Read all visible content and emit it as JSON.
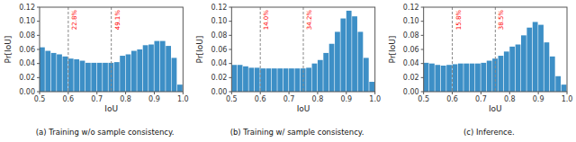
{
  "chart_data": [
    {
      "type": "histogram",
      "title": "(a) Training w/o sample consistency.",
      "x_label": "IoU",
      "y_label": "Pr[IoU]",
      "color": "#3d8fc6",
      "bins": [
        0.5,
        0.52,
        0.54,
        0.56,
        0.58,
        0.6,
        0.62,
        0.64,
        0.66,
        0.68,
        0.7,
        0.72,
        0.74,
        0.76,
        0.78,
        0.8,
        0.82,
        0.84,
        0.86,
        0.88,
        0.9,
        0.92,
        0.94,
        0.96,
        0.98,
        1.0
      ],
      "values": [
        0.063,
        0.058,
        0.055,
        0.053,
        0.05,
        0.047,
        0.046,
        0.044,
        0.041,
        0.041,
        0.041,
        0.041,
        0.041,
        0.042,
        0.051,
        0.053,
        0.058,
        0.06,
        0.066,
        0.067,
        0.072,
        0.072,
        0.065,
        0.048,
        0.01
      ],
      "annotations": [
        {
          "x": 0.6,
          "text": "22.8%",
          "color": "red"
        },
        {
          "x": 0.75,
          "text": "49.1%",
          "color": "red"
        }
      ],
      "xlim": [
        0.5,
        1.0
      ],
      "xticks": [
        0.5,
        0.6,
        0.7,
        0.8,
        0.9,
        {
          "value": 1.0,
          "label": "1.0"
        }
      ],
      "ylim": [
        0,
        0.12
      ],
      "yticks": [
        {
          "value": 0,
          "label": "0.00"
        },
        0.02,
        0.04,
        0.06,
        0.08,
        {
          "value": 0.1,
          "label": "0.10"
        },
        0.12
      ],
      "grid": false
    },
    {
      "type": "histogram",
      "title": "(b) Training w/ sample consistency.",
      "x_label": "IoU",
      "y_label": "Pr[IoU]",
      "color": "#3d8fc6",
      "bins": [
        0.5,
        0.52,
        0.54,
        0.56,
        0.58,
        0.6,
        0.62,
        0.64,
        0.66,
        0.68,
        0.7,
        0.72,
        0.74,
        0.76,
        0.78,
        0.8,
        0.82,
        0.84,
        0.86,
        0.88,
        0.9,
        0.92,
        0.94,
        0.96,
        0.98,
        1.0
      ],
      "values": [
        0.038,
        0.038,
        0.036,
        0.034,
        0.034,
        0.033,
        0.033,
        0.033,
        0.033,
        0.033,
        0.033,
        0.033,
        0.033,
        0.034,
        0.04,
        0.045,
        0.055,
        0.068,
        0.085,
        0.104,
        0.115,
        0.107,
        0.085,
        0.048,
        0.014
      ],
      "annotations": [
        {
          "x": 0.6,
          "text": "14.0%",
          "color": "red"
        },
        {
          "x": 0.75,
          "text": "34.2%",
          "color": "red"
        }
      ],
      "xlim": [
        0.5,
        1.0
      ],
      "xticks": [
        0.5,
        0.6,
        0.7,
        0.8,
        0.9,
        {
          "value": 1.0,
          "label": "1.0"
        }
      ],
      "ylim": [
        0,
        0.12
      ],
      "yticks": [
        {
          "value": 0,
          "label": "0.00"
        },
        0.02,
        0.04,
        0.06,
        0.08,
        {
          "value": 0.1,
          "label": "0.10"
        },
        0.12
      ],
      "grid": false
    },
    {
      "type": "histogram",
      "title": "(c) Inference.",
      "x_label": "IoU",
      "y_label": "Pr[IoU]",
      "color": "#3d8fc6",
      "bins": [
        0.5,
        0.52,
        0.54,
        0.56,
        0.58,
        0.6,
        0.62,
        0.64,
        0.66,
        0.68,
        0.7,
        0.72,
        0.74,
        0.76,
        0.78,
        0.8,
        0.82,
        0.84,
        0.86,
        0.88,
        0.9,
        0.92,
        0.94,
        0.96,
        0.98,
        1.0
      ],
      "values": [
        0.041,
        0.04,
        0.038,
        0.037,
        0.038,
        0.039,
        0.04,
        0.04,
        0.04,
        0.04,
        0.041,
        0.044,
        0.047,
        0.051,
        0.057,
        0.064,
        0.067,
        0.08,
        0.091,
        0.099,
        0.095,
        0.07,
        0.05,
        0.022,
        0.01
      ],
      "annotations": [
        {
          "x": 0.6,
          "text": "15.8%",
          "color": "red"
        },
        {
          "x": 0.75,
          "text": "38.5%",
          "color": "red"
        }
      ],
      "xlim": [
        0.5,
        1.0
      ],
      "xticks": [
        0.5,
        0.6,
        0.7,
        0.8,
        0.9,
        {
          "value": 1.0,
          "label": "1.0"
        }
      ],
      "ylim": [
        0,
        0.12
      ],
      "yticks": [
        {
          "value": 0,
          "label": "0.00"
        },
        0.02,
        0.04,
        0.06,
        0.08,
        {
          "value": 0.1,
          "label": "0.10"
        },
        0.12
      ],
      "grid": false
    }
  ]
}
